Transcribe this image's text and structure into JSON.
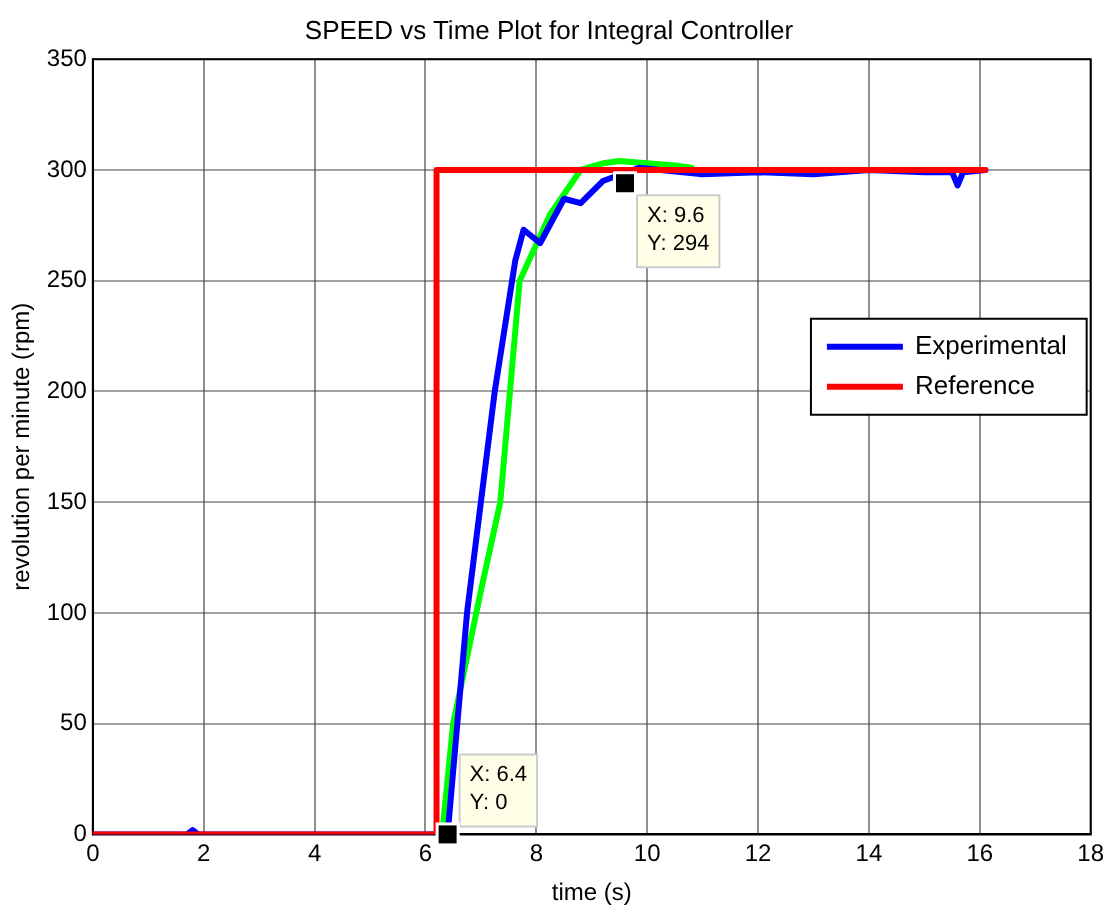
{
  "chart_data": {
    "type": "line",
    "title": "SPEED vs Time Plot for Integral Controller",
    "xlabel": "time (s)",
    "ylabel": "revolution per minute (rpm)",
    "xlim": [
      0,
      18
    ],
    "xticks": [
      0,
      2,
      4,
      6,
      8,
      10,
      12,
      14,
      16,
      18
    ],
    "ylim": [
      0,
      350
    ],
    "yticks": [
      0,
      50,
      100,
      150,
      200,
      250,
      300,
      350
    ],
    "grid": true,
    "legend": "right",
    "line_style": "solid",
    "marker": "none",
    "series": [
      {
        "color": "#00ff00",
        "x": [
          6.3,
          6.5,
          7.0,
          7.35,
          7.7,
          8.25,
          8.8,
          9.2,
          9.5,
          10.0,
          10.5,
          10.8
        ],
        "values": [
          0,
          50,
          110,
          150,
          250,
          280,
          300,
          303,
          304,
          303,
          302,
          301
        ]
      },
      {
        "name": "Experimental",
        "color": "#0000ff",
        "x": [
          0,
          1.7,
          1.8,
          1.9,
          6.4,
          6.75,
          7.25,
          7.62,
          7.77,
          8.07,
          8.5,
          8.8,
          9.2,
          9.85,
          11,
          12,
          13,
          14,
          15,
          15.5,
          15.6,
          15.7,
          16.1
        ],
        "values": [
          0,
          0,
          2,
          0,
          0,
          100,
          200,
          259,
          273,
          267,
          287,
          285,
          295,
          301,
          298,
          299,
          298,
          300,
          299,
          299,
          293,
          299,
          300
        ]
      },
      {
        "name": "Reference",
        "color": "#ff0000",
        "x": [
          0,
          6.2,
          6.2,
          16.1
        ],
        "values": [
          0,
          0,
          300,
          300
        ]
      }
    ],
    "annotations": [
      {
        "text": "X: 9.6\nY: 294",
        "x": 9.6,
        "y": 294
      },
      {
        "text": "X: 6.4\nY: 0",
        "x": 6.4,
        "y": 0
      }
    ]
  }
}
